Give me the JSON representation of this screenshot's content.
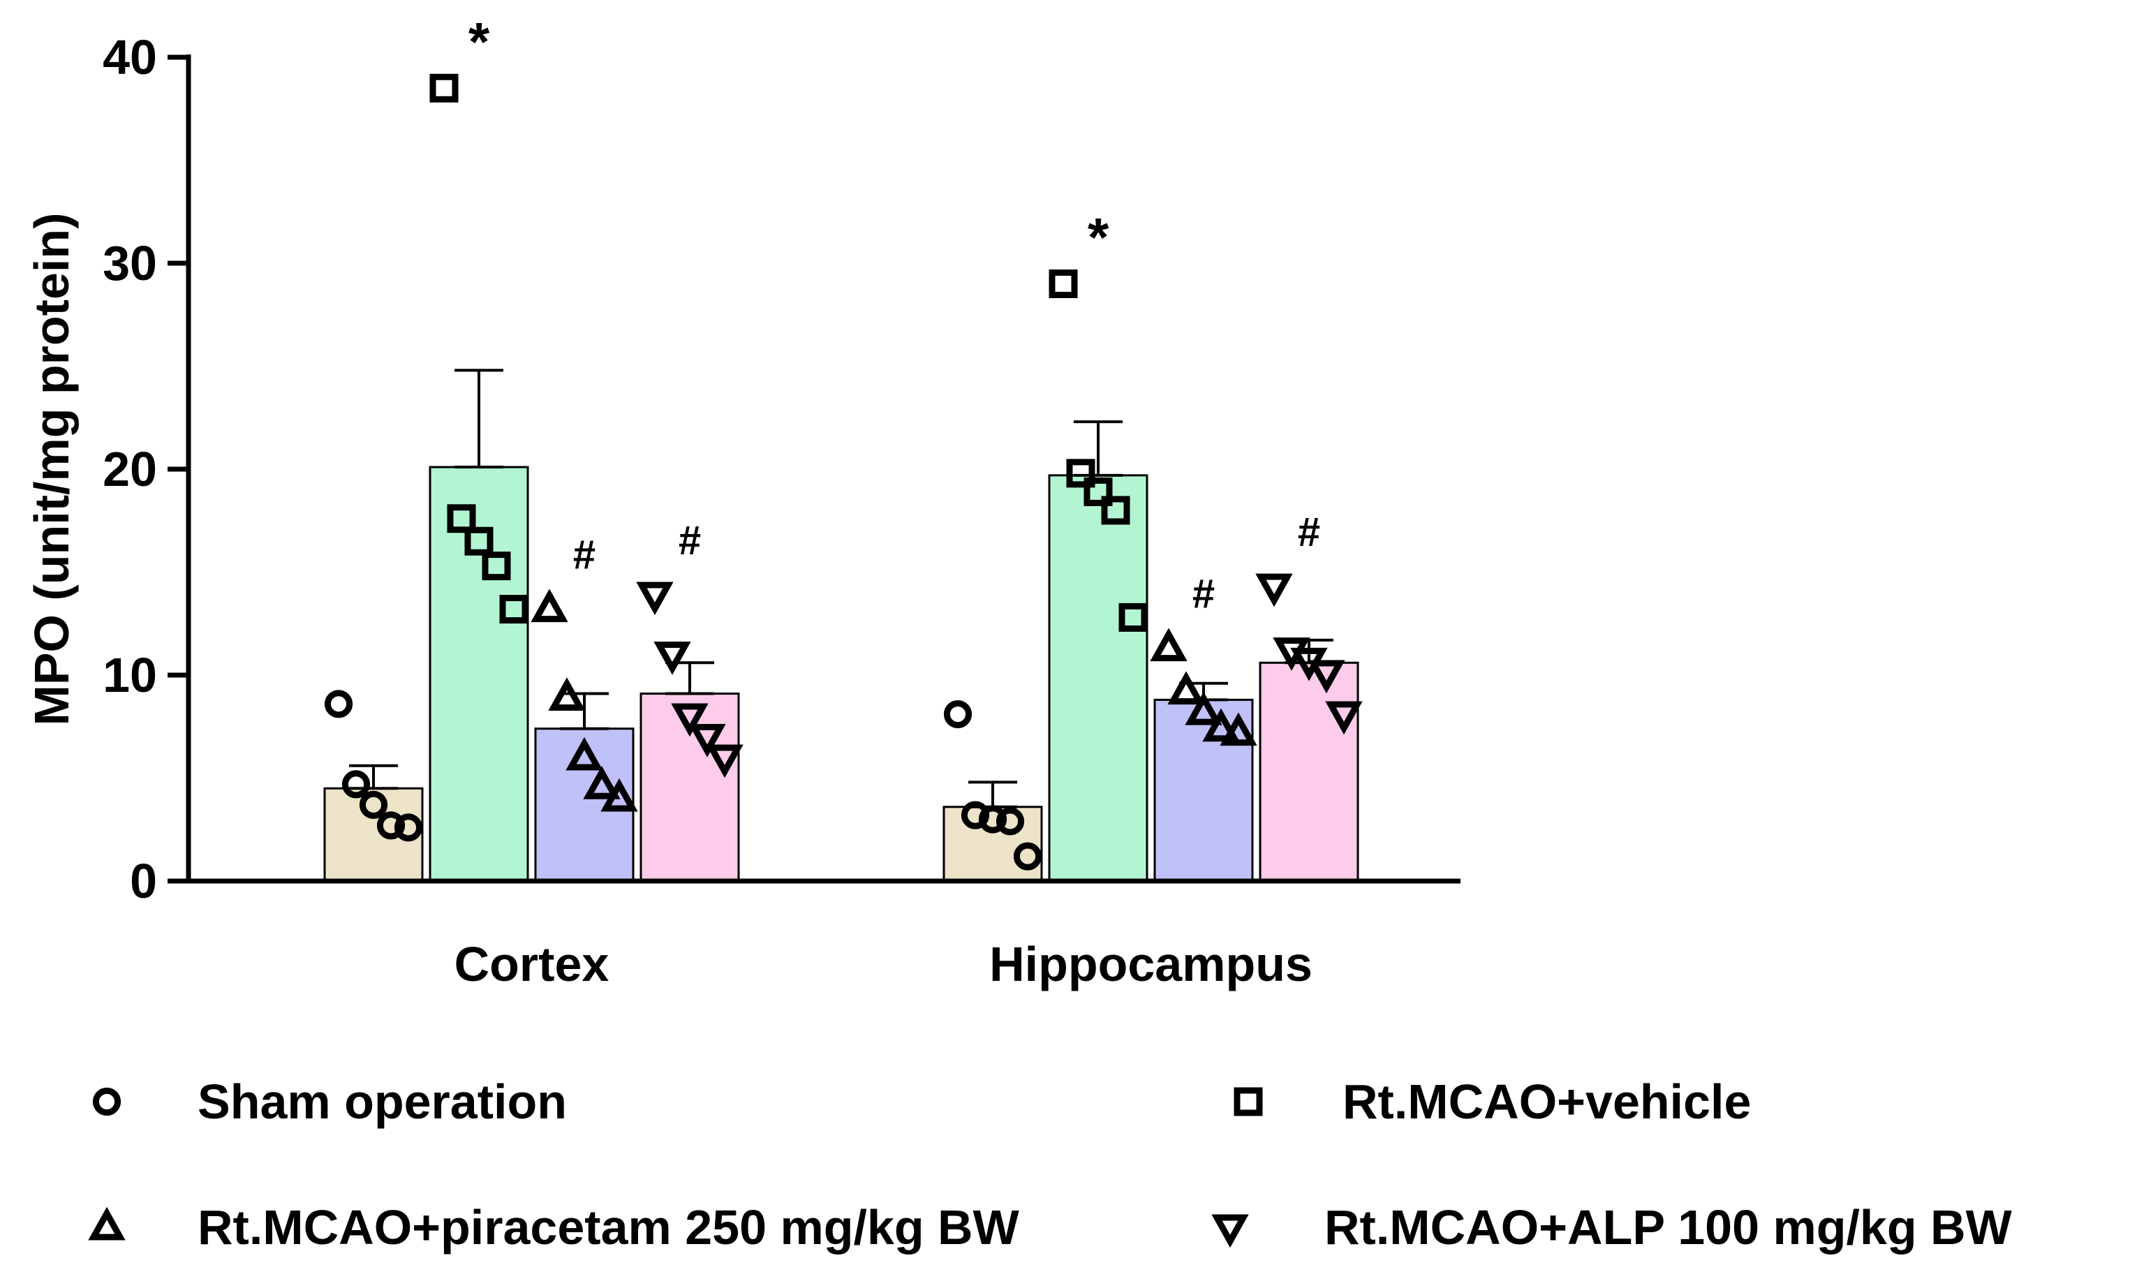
{
  "chart_data": {
    "type": "bar",
    "title": "",
    "xlabel": "",
    "ylabel": "MPO (unit/mg protein)",
    "ylim": [
      0,
      40
    ],
    "yticks": [
      0,
      10,
      20,
      30,
      40
    ],
    "categories": [
      "Cortex",
      "Hippocampus"
    ],
    "series": [
      {
        "name": "Sham operation",
        "marker": "circle",
        "color": "#EDE3C8",
        "values": [
          4.5,
          3.6
        ],
        "sem": [
          1.1,
          1.2
        ],
        "points": [
          [
            8.6,
            4.7,
            3.7,
            2.7,
            2.6
          ],
          [
            8.1,
            3.2,
            3.0,
            2.9,
            1.2
          ]
        ],
        "annotation": [
          "",
          ""
        ]
      },
      {
        "name": "Rt.MCAO+vehicle",
        "marker": "square",
        "color": "#B3F5D2",
        "values": [
          20.1,
          19.7
        ],
        "sem": [
          4.7,
          2.6
        ],
        "points": [
          [
            38.5,
            17.6,
            16.5,
            15.3,
            13.2
          ],
          [
            29.0,
            19.8,
            18.9,
            18.0,
            12.8
          ]
        ],
        "annotation": [
          "*",
          "*"
        ]
      },
      {
        "name": "Rt.MCAO+piracetam 250 mg/kg BW",
        "marker": "triangle-up",
        "color": "#C0C1F8",
        "values": [
          7.4,
          8.8
        ],
        "sem": [
          1.7,
          0.8
        ],
        "points": [
          [
            13.2,
            8.9,
            6.0,
            4.6,
            4.0
          ],
          [
            11.3,
            9.2,
            8.2,
            7.4,
            7.2
          ]
        ],
        "annotation": [
          "#",
          "#"
        ]
      },
      {
        "name": "Rt.MCAO+ALP 100 mg/kg BW",
        "marker": "triangle-down",
        "color": "#FCCCEA",
        "values": [
          9.1,
          10.6
        ],
        "sem": [
          1.5,
          1.1
        ],
        "points": [
          [
            13.9,
            11.0,
            8.0,
            7.0,
            6.0
          ],
          [
            14.3,
            11.2,
            10.7,
            10.1,
            8.1
          ]
        ],
        "annotation": [
          "#",
          "#"
        ]
      }
    ],
    "legend": {
      "position": "bottom",
      "entries": [
        {
          "label": "Sham operation",
          "marker": "circle"
        },
        {
          "label": "Rt.MCAO+vehicle",
          "marker": "square"
        },
        {
          "label": "Rt.MCAO+piracetam 250 mg/kg BW",
          "marker": "triangle-up"
        },
        {
          "label": "Rt.MCAO+ALP 100 mg/kg BW",
          "marker": "triangle-down"
        }
      ]
    }
  }
}
